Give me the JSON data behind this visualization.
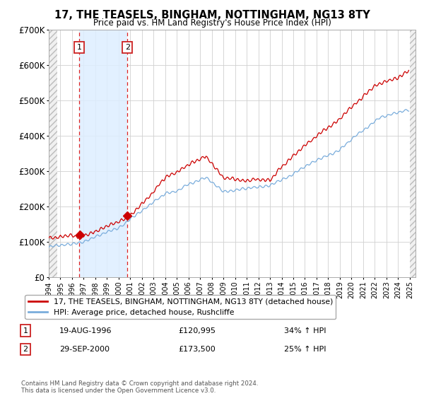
{
  "title": "17, THE TEASELS, BINGHAM, NOTTINGHAM, NG13 8TY",
  "subtitle": "Price paid vs. HM Land Registry's House Price Index (HPI)",
  "hpi_label": "HPI: Average price, detached house, Rushcliffe",
  "property_label": "17, THE TEASELS, BINGHAM, NOTTINGHAM, NG13 8TY (detached house)",
  "red_color": "#cc0000",
  "blue_color": "#7aaddc",
  "sale1_date": "19-AUG-1996",
  "sale1_price": 120995,
  "sale1_hpi_pct": "34% ↑ HPI",
  "sale2_date": "29-SEP-2000",
  "sale2_price": 173500,
  "sale2_hpi_pct": "25% ↑ HPI",
  "ylim": [
    0,
    700000
  ],
  "yticks": [
    0,
    100000,
    200000,
    300000,
    400000,
    500000,
    600000,
    700000
  ],
  "ytick_labels": [
    "£0",
    "£100K",
    "£200K",
    "£300K",
    "£400K",
    "£500K",
    "£600K",
    "£700K"
  ],
  "copyright_text": "Contains HM Land Registry data © Crown copyright and database right 2024.\nThis data is licensed under the Open Government Licence v3.0.",
  "sale1_year": 1996.63,
  "sale2_year": 2000.75,
  "shade_start": 1996.63,
  "shade_end": 2000.75,
  "xmin": 1994,
  "xmax": 2025.5
}
